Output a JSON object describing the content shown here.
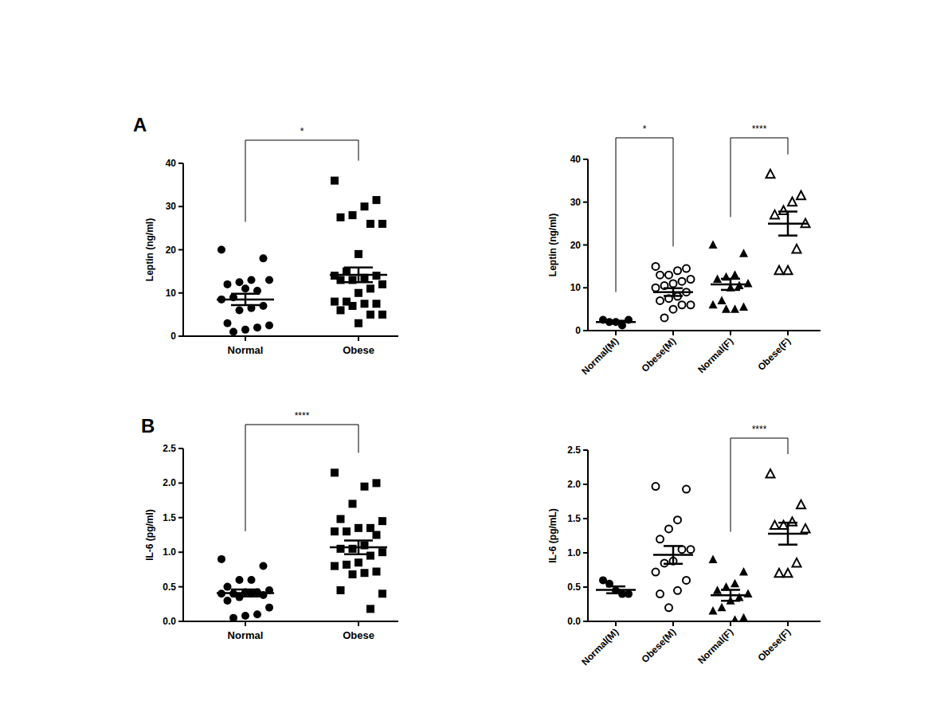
{
  "chart_data": [
    {
      "type": "dot",
      "title": "A",
      "ylabel": "Leptin (ng/ml)",
      "color": "#000000",
      "categories": [
        "Normal",
        "Obese"
      ],
      "groups": [
        {
          "marker": "filled-circle",
          "values": [
            20,
            18,
            13,
            12.5,
            12,
            13,
            10.5,
            11,
            9,
            8.5,
            7,
            6.5,
            6,
            3,
            2.5,
            2,
            1.5,
            1
          ],
          "mean": 8.5,
          "error": 1.3
        },
        {
          "marker": "filled-square",
          "values": [
            36,
            31.5,
            30,
            28,
            27.5,
            26,
            26,
            19,
            15,
            14,
            14,
            13.5,
            13,
            13,
            12,
            11,
            10,
            8,
            8,
            7.5,
            7.5,
            7,
            6,
            5,
            5,
            3
          ],
          "mean": 14.2,
          "error": 1.7
        }
      ],
      "ylim": [
        0,
        40
      ],
      "yticks": [
        0,
        10,
        20,
        30,
        40
      ],
      "annotations": [
        {
          "from": 0,
          "to": 1,
          "text": "*"
        }
      ]
    },
    {
      "type": "dot",
      "ylabel": "Leptin (ng/ml)",
      "color": "#000000",
      "categories": [
        "Normal(M)",
        "Obese(M)",
        "Normal(F)",
        "Obese(F)"
      ],
      "groups": [
        {
          "marker": "filled-circle",
          "values": [
            2.5,
            2,
            2,
            1.2,
            2.5
          ],
          "mean": 2,
          "error": 0.3
        },
        {
          "marker": "open-circle",
          "values": [
            15,
            14.5,
            14,
            13,
            13,
            12,
            11.5,
            11,
            10.5,
            10,
            9,
            8,
            7.5,
            7,
            6,
            6,
            5,
            3
          ],
          "mean": 9,
          "error": 0.9
        },
        {
          "marker": "filled-triangle",
          "values": [
            20,
            18,
            13,
            12.5,
            12,
            11,
            10.5,
            10,
            7,
            6,
            5.5,
            5,
            5
          ],
          "mean": 10.8,
          "error": 1.3
        },
        {
          "marker": "open-triangle",
          "values": [
            36.5,
            31.5,
            30,
            28,
            27,
            25,
            19,
            14,
            14
          ],
          "mean": 25,
          "error": 2.8
        }
      ],
      "ylim": [
        0,
        40
      ],
      "yticks": [
        0,
        10,
        20,
        30,
        40
      ],
      "annotations": [
        {
          "from": 0,
          "to": 1,
          "text": "*"
        },
        {
          "from": 2,
          "to": 3,
          "text": "****"
        }
      ]
    },
    {
      "type": "dot",
      "title": "B",
      "ylabel": "IL-6 (pg/ml)",
      "color": "#000000",
      "categories": [
        "Normal",
        "Obese"
      ],
      "groups": [
        {
          "marker": "filled-circle",
          "values": [
            0.9,
            0.8,
            0.6,
            0.6,
            0.5,
            0.45,
            0.42,
            0.42,
            0.4,
            0.4,
            0.38,
            0.4,
            0.35,
            0.3,
            0.2,
            0.1,
            0.08,
            0.05
          ],
          "mean": 0.41,
          "error": 0.05
        },
        {
          "marker": "filled-square",
          "values": [
            2.15,
            2.0,
            1.95,
            1.7,
            1.48,
            1.45,
            1.35,
            1.35,
            1.3,
            1.3,
            1.25,
            1.1,
            1.05,
            1.05,
            1.0,
            0.95,
            0.85,
            0.82,
            0.8,
            0.72,
            0.7,
            0.68,
            0.45,
            0.4,
            0.18
          ],
          "mean": 1.07,
          "error": 0.1
        }
      ],
      "ylim": [
        0,
        2.5
      ],
      "yticks": [
        {
          "value": 0,
          "label": "0.0"
        },
        0.5,
        {
          "value": 1,
          "label": "1.0"
        },
        1.5,
        {
          "value": 2,
          "label": "2.0"
        },
        2.5
      ],
      "annotations": [
        {
          "from": 0,
          "to": 1,
          "text": "****"
        }
      ]
    },
    {
      "type": "dot",
      "ylabel": "IL-6 (pg/mL)",
      "color": "#000000",
      "categories": [
        "Normal(M)",
        "Obese(M)",
        "Normal(F)",
        "Obese(F)"
      ],
      "groups": [
        {
          "marker": "filled-circle",
          "values": [
            0.6,
            0.55,
            0.45,
            0.4,
            0.4
          ],
          "mean": 0.46,
          "error": 0.05
        },
        {
          "marker": "open-circle",
          "values": [
            1.97,
            1.93,
            1.48,
            1.35,
            1.2,
            1.05,
            1.05,
            0.88,
            0.85,
            0.72,
            0.6,
            0.45,
            0.2,
            0.4
          ],
          "mean": 0.97,
          "error": 0.13
        },
        {
          "marker": "filled-triangle",
          "values": [
            0.9,
            0.72,
            0.55,
            0.5,
            0.45,
            0.4,
            0.35,
            0.3,
            0.2,
            0.15,
            0.05,
            0.02
          ],
          "mean": 0.38,
          "error": 0.08
        },
        {
          "marker": "open-triangle",
          "values": [
            2.15,
            1.7,
            1.45,
            1.4,
            1.4,
            1.35,
            0.85,
            0.7,
            0.7
          ],
          "mean": 1.28,
          "error": 0.16
        }
      ],
      "ylim": [
        0,
        2.5
      ],
      "yticks": [
        {
          "value": 0,
          "label": "0.0"
        },
        0.5,
        {
          "value": 1,
          "label": "1.0"
        },
        1.5,
        {
          "value": 2,
          "label": "2.0"
        },
        2.5
      ],
      "annotations": [
        {
          "from": 2,
          "to": 3,
          "text": "****"
        }
      ]
    }
  ]
}
